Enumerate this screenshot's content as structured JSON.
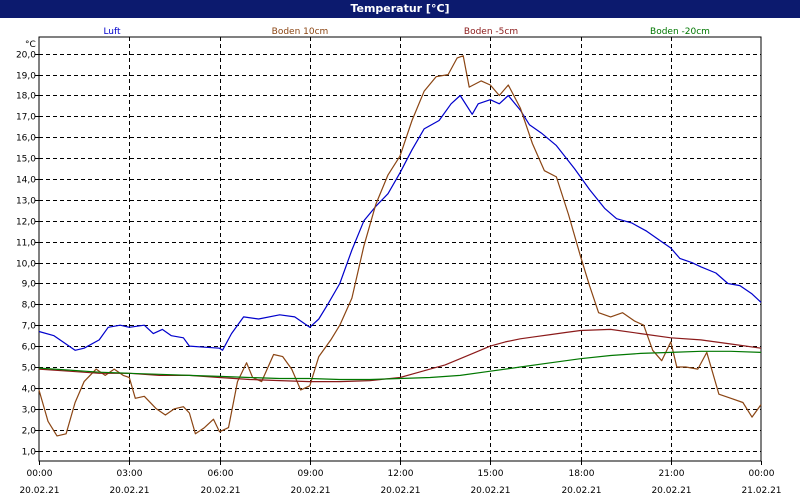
{
  "title_bar": "Temperatur [°C]",
  "colors": {
    "title_bg": "#0c1a6e",
    "Luft": "#0000cc",
    "Boden 10cm": "#8b4513",
    "Boden -5cm": "#8b1a1a",
    "Boden -20cm": "#007700"
  },
  "chart_data": {
    "type": "line",
    "title": "Temperatur [°C]",
    "ylabel": "°C",
    "ylim": [
      0.5,
      20.8
    ],
    "xlim": [
      0,
      24
    ],
    "grid": true,
    "legend_position": "top",
    "x_ticks": [
      {
        "x": 0,
        "time": "00:00",
        "date": "20.02.21"
      },
      {
        "x": 3,
        "time": "03:00",
        "date": "20.02.21"
      },
      {
        "x": 6,
        "time": "06:00",
        "date": "20.02.21"
      },
      {
        "x": 9,
        "time": "09:00",
        "date": "20.02.21"
      },
      {
        "x": 12,
        "time": "12:00",
        "date": "20.02.21"
      },
      {
        "x": 15,
        "time": "15:00",
        "date": "20.02.21"
      },
      {
        "x": 18,
        "time": "18:00",
        "date": "20.02.21"
      },
      {
        "x": 21,
        "time": "21:00",
        "date": "20.02.21"
      },
      {
        "x": 24,
        "time": "00:00",
        "date": "21.02.21"
      }
    ],
    "y_ticks": [
      "1,0",
      "2,0",
      "3,0",
      "4,0",
      "5,0",
      "6,0",
      "7,0",
      "8,0",
      "9,0",
      "10,0",
      "11,0",
      "12,0",
      "13,0",
      "14,0",
      "15,0",
      "16,0",
      "17,0",
      "18,0",
      "19,0",
      "20,0"
    ],
    "y_tick_values": [
      1,
      2,
      3,
      4,
      5,
      6,
      7,
      8,
      9,
      10,
      11,
      12,
      13,
      14,
      15,
      16,
      17,
      18,
      19,
      20
    ],
    "series": [
      {
        "name": "Luft",
        "color": "#0000cc",
        "points": [
          [
            0,
            6.7
          ],
          [
            0.5,
            6.5
          ],
          [
            1,
            6.0
          ],
          [
            1.2,
            5.8
          ],
          [
            1.5,
            5.9
          ],
          [
            2,
            6.3
          ],
          [
            2.3,
            6.9
          ],
          [
            2.7,
            7.0
          ],
          [
            3,
            6.9
          ],
          [
            3.5,
            7.0
          ],
          [
            3.8,
            6.6
          ],
          [
            4.1,
            6.8
          ],
          [
            4.4,
            6.5
          ],
          [
            4.8,
            6.4
          ],
          [
            5,
            6.0
          ],
          [
            5.5,
            5.95
          ],
          [
            6,
            5.9
          ],
          [
            6.1,
            5.8
          ],
          [
            6.4,
            6.6
          ],
          [
            6.8,
            7.4
          ],
          [
            7.3,
            7.3
          ],
          [
            8,
            7.5
          ],
          [
            8.5,
            7.4
          ],
          [
            9,
            6.9
          ],
          [
            9.3,
            7.3
          ],
          [
            9.6,
            8.0
          ],
          [
            10,
            9.0
          ],
          [
            10.4,
            10.6
          ],
          [
            10.8,
            12.0
          ],
          [
            11.2,
            12.7
          ],
          [
            11.6,
            13.3
          ],
          [
            12,
            14.3
          ],
          [
            12.4,
            15.4
          ],
          [
            12.8,
            16.4
          ],
          [
            13.3,
            16.8
          ],
          [
            13.7,
            17.6
          ],
          [
            14,
            18.0
          ],
          [
            14.4,
            17.1
          ],
          [
            14.6,
            17.6
          ],
          [
            15,
            17.8
          ],
          [
            15.3,
            17.6
          ],
          [
            15.6,
            18.0
          ],
          [
            16,
            17.3
          ],
          [
            16.3,
            16.6
          ],
          [
            16.7,
            16.2
          ],
          [
            17.2,
            15.6
          ],
          [
            17.8,
            14.5
          ],
          [
            18.3,
            13.5
          ],
          [
            18.8,
            12.6
          ],
          [
            19.2,
            12.1
          ],
          [
            19.7,
            11.9
          ],
          [
            20.2,
            11.5
          ],
          [
            20.7,
            11.0
          ],
          [
            21,
            10.7
          ],
          [
            21.3,
            10.2
          ],
          [
            21.7,
            10.0
          ],
          [
            22,
            9.8
          ],
          [
            22.5,
            9.5
          ],
          [
            22.9,
            9.0
          ],
          [
            23.3,
            8.9
          ],
          [
            23.7,
            8.5
          ],
          [
            24,
            8.1
          ]
        ]
      },
      {
        "name": "Boden 10cm",
        "color": "#8b4513",
        "points": [
          [
            0,
            3.9
          ],
          [
            0.3,
            2.4
          ],
          [
            0.6,
            1.7
          ],
          [
            0.9,
            1.8
          ],
          [
            1.2,
            3.3
          ],
          [
            1.5,
            4.3
          ],
          [
            1.9,
            4.9
          ],
          [
            2.2,
            4.6
          ],
          [
            2.5,
            4.9
          ],
          [
            2.8,
            4.6
          ],
          [
            3,
            4.5
          ],
          [
            3.2,
            3.5
          ],
          [
            3.5,
            3.6
          ],
          [
            3.9,
            3.0
          ],
          [
            4.2,
            2.7
          ],
          [
            4.5,
            3.0
          ],
          [
            4.8,
            3.1
          ],
          [
            5,
            2.8
          ],
          [
            5.2,
            1.8
          ],
          [
            5.5,
            2.1
          ],
          [
            5.8,
            2.5
          ],
          [
            6,
            1.9
          ],
          [
            6.3,
            2.1
          ],
          [
            6.6,
            4.3
          ],
          [
            6.9,
            5.2
          ],
          [
            7.1,
            4.5
          ],
          [
            7.4,
            4.3
          ],
          [
            7.8,
            5.6
          ],
          [
            8.1,
            5.5
          ],
          [
            8.4,
            4.9
          ],
          [
            8.7,
            3.9
          ],
          [
            9,
            4.1
          ],
          [
            9.3,
            5.5
          ],
          [
            9.7,
            6.3
          ],
          [
            10,
            7.0
          ],
          [
            10.4,
            8.3
          ],
          [
            10.8,
            10.8
          ],
          [
            11.2,
            12.8
          ],
          [
            11.6,
            14.2
          ],
          [
            12,
            15.1
          ],
          [
            12.4,
            16.8
          ],
          [
            12.8,
            18.2
          ],
          [
            13.2,
            18.9
          ],
          [
            13.6,
            19.0
          ],
          [
            13.9,
            19.8
          ],
          [
            14.1,
            19.9
          ],
          [
            14.3,
            18.4
          ],
          [
            14.7,
            18.7
          ],
          [
            15,
            18.5
          ],
          [
            15.3,
            18.0
          ],
          [
            15.6,
            18.5
          ],
          [
            16,
            17.4
          ],
          [
            16.4,
            15.7
          ],
          [
            16.8,
            14.4
          ],
          [
            17.2,
            14.1
          ],
          [
            17.6,
            12.3
          ],
          [
            18,
            10.3
          ],
          [
            18.3,
            8.9
          ],
          [
            18.6,
            7.6
          ],
          [
            19,
            7.4
          ],
          [
            19.4,
            7.6
          ],
          [
            19.8,
            7.2
          ],
          [
            20.1,
            7.0
          ],
          [
            20.4,
            5.8
          ],
          [
            20.7,
            5.3
          ],
          [
            21,
            6.2
          ],
          [
            21.2,
            5.0
          ],
          [
            21.5,
            5.0
          ],
          [
            21.9,
            4.9
          ],
          [
            22.2,
            5.7
          ],
          [
            22.6,
            3.7
          ],
          [
            23,
            3.5
          ],
          [
            23.4,
            3.3
          ],
          [
            23.7,
            2.6
          ],
          [
            24,
            3.2
          ]
        ]
      },
      {
        "name": "Boden -5cm",
        "color": "#8b1a1a",
        "points": [
          [
            0,
            4.9
          ],
          [
            1,
            4.8
          ],
          [
            2,
            4.7
          ],
          [
            3,
            4.7
          ],
          [
            4,
            4.6
          ],
          [
            5,
            4.6
          ],
          [
            6,
            4.5
          ],
          [
            7,
            4.4
          ],
          [
            8,
            4.35
          ],
          [
            9,
            4.3
          ],
          [
            10,
            4.3
          ],
          [
            11,
            4.35
          ],
          [
            12,
            4.5
          ],
          [
            12.5,
            4.7
          ],
          [
            13,
            4.9
          ],
          [
            13.5,
            5.1
          ],
          [
            14,
            5.4
          ],
          [
            14.5,
            5.7
          ],
          [
            15,
            6.0
          ],
          [
            15.5,
            6.2
          ],
          [
            16,
            6.35
          ],
          [
            16.5,
            6.45
          ],
          [
            17,
            6.55
          ],
          [
            17.5,
            6.65
          ],
          [
            18,
            6.75
          ],
          [
            19,
            6.8
          ],
          [
            20,
            6.6
          ],
          [
            21,
            6.4
          ],
          [
            22,
            6.3
          ],
          [
            23,
            6.1
          ],
          [
            24,
            5.9
          ]
        ]
      },
      {
        "name": "Boden -20cm",
        "color": "#007700",
        "points": [
          [
            0,
            4.95
          ],
          [
            1,
            4.85
          ],
          [
            2,
            4.75
          ],
          [
            3,
            4.7
          ],
          [
            4,
            4.65
          ],
          [
            5,
            4.6
          ],
          [
            6,
            4.55
          ],
          [
            7,
            4.5
          ],
          [
            8,
            4.45
          ],
          [
            9,
            4.45
          ],
          [
            10,
            4.4
          ],
          [
            11,
            4.4
          ],
          [
            12,
            4.45
          ],
          [
            13,
            4.5
          ],
          [
            14,
            4.6
          ],
          [
            15,
            4.8
          ],
          [
            16,
            5.0
          ],
          [
            17,
            5.2
          ],
          [
            18,
            5.4
          ],
          [
            19,
            5.55
          ],
          [
            20,
            5.65
          ],
          [
            21,
            5.7
          ],
          [
            22,
            5.75
          ],
          [
            23,
            5.75
          ],
          [
            24,
            5.7
          ]
        ]
      }
    ]
  }
}
